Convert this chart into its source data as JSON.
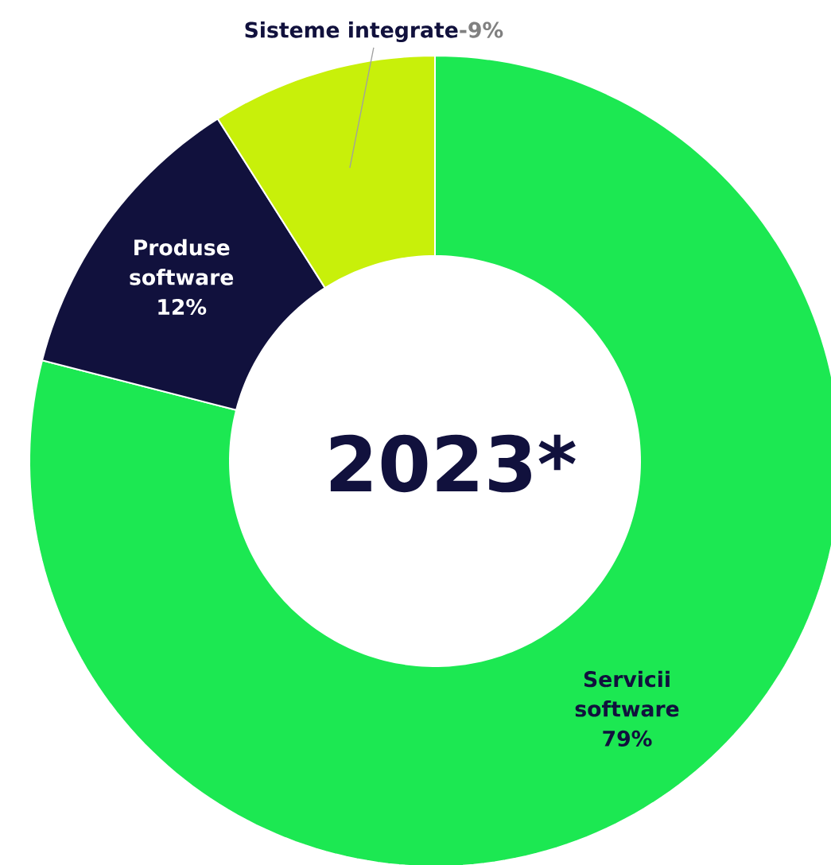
{
  "chart_data": {
    "type": "donut",
    "title": "2023*",
    "categories": [
      "Servicii software",
      "Produse software",
      "Sisteme integrate"
    ],
    "values": [
      79,
      12,
      9
    ],
    "colors": [
      "#1ce852",
      "#11113d",
      "#c8f00a"
    ],
    "value_labels": [
      "79%",
      "12%",
      "9%"
    ],
    "annotations": [
      "-"
    ]
  }
}
